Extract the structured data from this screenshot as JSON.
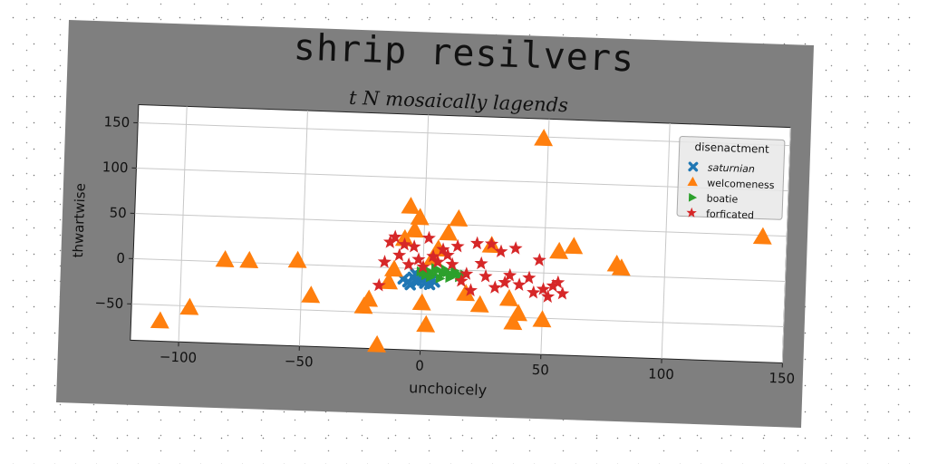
{
  "figure": {
    "suptitle": "shrip resilvers",
    "subtitle": "t N mosaically lagends",
    "background_color": "#7f7f7f"
  },
  "chart_data": {
    "type": "scatter",
    "title": "t N mosaically lagends",
    "xlabel": "unchoicely",
    "ylabel": "thwartwise",
    "xlim": [
      -120,
      150
    ],
    "ylim": [
      -90,
      170
    ],
    "xticks": [
      -100,
      -50,
      0,
      50,
      100,
      150
    ],
    "yticks": [
      -50,
      0,
      50,
      100,
      150
    ],
    "xtick_labels": [
      "−100",
      "−50",
      "0",
      "50",
      "100",
      "150"
    ],
    "ytick_labels": [
      "−50",
      "0",
      "50",
      "100",
      "150"
    ],
    "grid": true,
    "legend": {
      "title": "disenactment",
      "placement": "upper-right"
    },
    "series": [
      {
        "name": "saturnian",
        "marker": "x-filled",
        "color": "#1f77b4",
        "points": [
          [
            -8,
            -12
          ],
          [
            -6,
            -15
          ],
          [
            -4,
            -10
          ],
          [
            -2,
            -14
          ],
          [
            0,
            -13
          ],
          [
            2,
            -9
          ],
          [
            -5,
            -18
          ],
          [
            1,
            -16
          ],
          [
            4,
            -11
          ],
          [
            -1,
            -8
          ],
          [
            3,
            -17
          ],
          [
            -3,
            -6
          ],
          [
            5,
            -14
          ]
        ]
      },
      {
        "name": "welcomeness",
        "marker": "triangle-up",
        "color": "#ff7f0e",
        "points": [
          [
            48,
            148
          ],
          [
            140,
            48
          ],
          [
            -108,
            -68
          ],
          [
            -96,
            -52
          ],
          [
            -82,
            2
          ],
          [
            -72,
            2
          ],
          [
            -52,
            4
          ],
          [
            -46,
            -34
          ],
          [
            -24,
            -44
          ],
          [
            -22,
            -36
          ],
          [
            -18,
            -86
          ],
          [
            -14,
            -16
          ],
          [
            -12,
            -2
          ],
          [
            -8,
            32
          ],
          [
            -6,
            68
          ],
          [
            -4,
            42
          ],
          [
            -2,
            56
          ],
          [
            0,
            -38
          ],
          [
            2,
            -62
          ],
          [
            4,
            12
          ],
          [
            6,
            22
          ],
          [
            10,
            40
          ],
          [
            14,
            56
          ],
          [
            18,
            -26
          ],
          [
            24,
            -38
          ],
          [
            28,
            28
          ],
          [
            36,
            -30
          ],
          [
            38,
            -56
          ],
          [
            40,
            -46
          ],
          [
            50,
            -52
          ],
          [
            56,
            24
          ],
          [
            62,
            30
          ],
          [
            80,
            12
          ],
          [
            82,
            8
          ]
        ]
      },
      {
        "name": "boatie",
        "marker": "triangle-right",
        "color": "#2ca02c",
        "points": [
          [
            0,
            -4
          ],
          [
            2,
            -2
          ],
          [
            4,
            -6
          ],
          [
            6,
            -1
          ],
          [
            8,
            -5
          ],
          [
            10,
            -3
          ],
          [
            12,
            -7
          ],
          [
            14,
            -4
          ],
          [
            3,
            -9
          ],
          [
            7,
            -10
          ],
          [
            11,
            -9
          ],
          [
            15,
            -8
          ],
          [
            5,
            1
          ],
          [
            9,
            0
          ],
          [
            13,
            -1
          ],
          [
            1,
            -7
          ],
          [
            17,
            -5
          ],
          [
            -1,
            -3
          ]
        ]
      },
      {
        "name": "forficated",
        "marker": "star",
        "color": "#d62728",
        "points": [
          [
            -12,
            34
          ],
          [
            -14,
            28
          ],
          [
            -10,
            14
          ],
          [
            -8,
            26
          ],
          [
            -6,
            4
          ],
          [
            -4,
            24
          ],
          [
            -2,
            10
          ],
          [
            0,
            2
          ],
          [
            2,
            34
          ],
          [
            4,
            14
          ],
          [
            6,
            8
          ],
          [
            8,
            22
          ],
          [
            10,
            16
          ],
          [
            12,
            6
          ],
          [
            14,
            26
          ],
          [
            16,
            -12
          ],
          [
            18,
            -4
          ],
          [
            20,
            -22
          ],
          [
            22,
            30
          ],
          [
            24,
            8
          ],
          [
            26,
            -6
          ],
          [
            28,
            30
          ],
          [
            30,
            -18
          ],
          [
            32,
            22
          ],
          [
            34,
            -12
          ],
          [
            36,
            -4
          ],
          [
            38,
            26
          ],
          [
            40,
            -14
          ],
          [
            44,
            -6
          ],
          [
            46,
            -22
          ],
          [
            48,
            14
          ],
          [
            50,
            -18
          ],
          [
            52,
            -26
          ],
          [
            54,
            -14
          ],
          [
            56,
            -10
          ],
          [
            58,
            -22
          ],
          [
            -16,
            6
          ],
          [
            -18,
            -20
          ]
        ]
      }
    ]
  }
}
